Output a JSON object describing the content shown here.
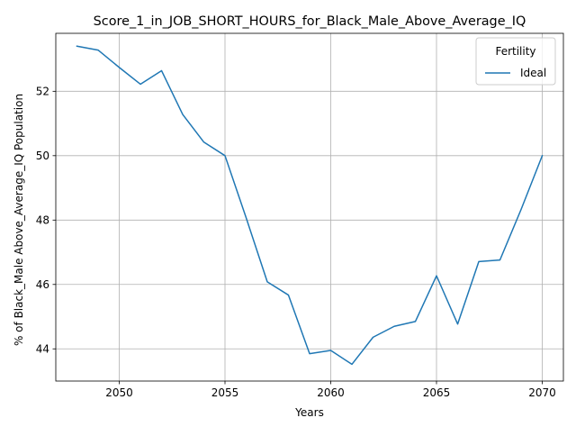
{
  "chart_data": {
    "type": "line",
    "title": "Score_1_in_JOB_SHORT_HOURS_for_Black_Male_Above_Average_IQ",
    "xlabel": "Years",
    "ylabel": "% of Black_Male Above_Average_IQ Population",
    "xlim": [
      2047,
      2071
    ],
    "ylim": [
      43.0,
      53.8
    ],
    "xticks": [
      2050,
      2055,
      2060,
      2065,
      2070
    ],
    "yticks": [
      44,
      46,
      48,
      50,
      52
    ],
    "grid": true,
    "legend": {
      "title": "Fertility",
      "placement": "top-right"
    },
    "series": [
      {
        "name": "Ideal",
        "color": "#1f77b4",
        "x": [
          2048,
          2049,
          2050,
          2051,
          2052,
          2053,
          2054,
          2055,
          2056,
          2057,
          2058,
          2059,
          2060,
          2061,
          2062,
          2063,
          2064,
          2065,
          2066,
          2067,
          2068,
          2069,
          2070
        ],
        "y": [
          53.4,
          53.28,
          52.74,
          52.22,
          52.64,
          51.28,
          50.42,
          50.0,
          48.07,
          46.08,
          45.67,
          43.85,
          43.95,
          43.52,
          44.36,
          44.7,
          44.85,
          46.27,
          44.77,
          46.71,
          46.76,
          48.33,
          50.0
        ]
      }
    ]
  }
}
